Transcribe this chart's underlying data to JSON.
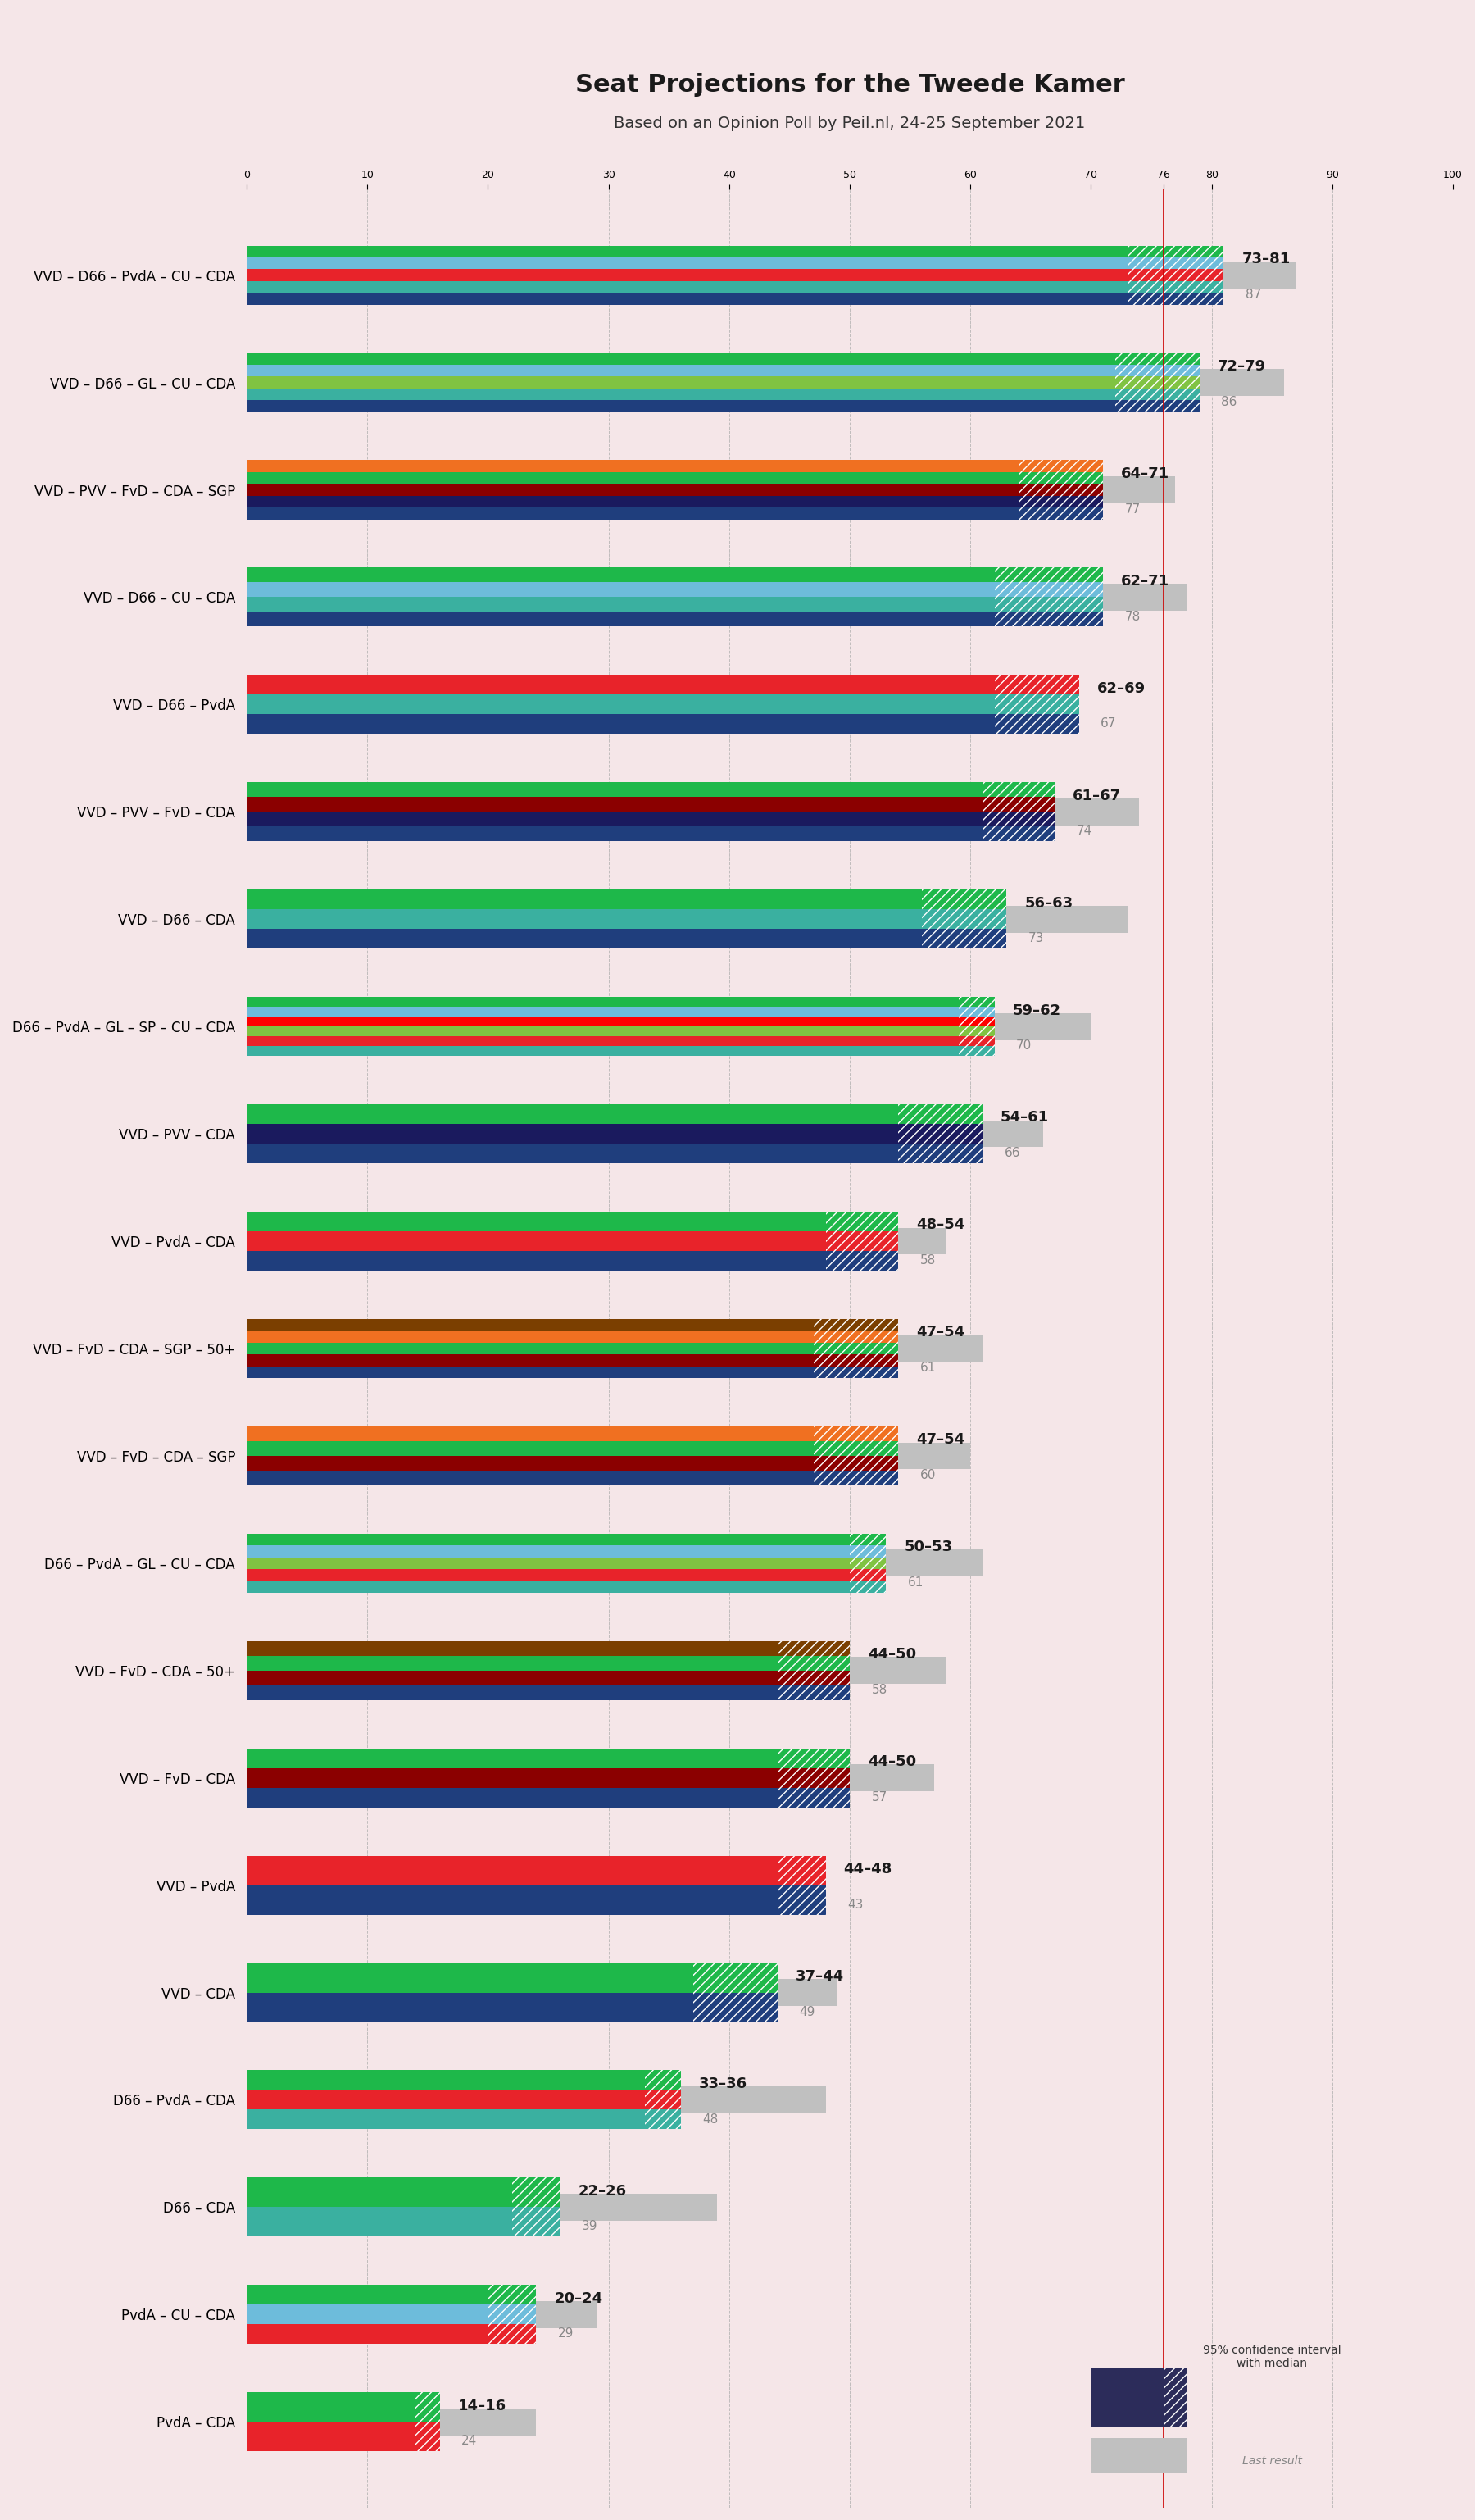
{
  "title": "Seat Projections for the Tweede Kamer",
  "subtitle": "Based on an Opinion Poll by Peil.nl, 24-25 September 2021",
  "background_color": "#f5e6e8",
  "coalitions": [
    {
      "name": "VVD – D66 – PvdA – CU – CDA",
      "low": 73,
      "high": 81,
      "last": 87,
      "parties": [
        "VVD",
        "D66",
        "PvdA",
        "CU",
        "CDA"
      ],
      "colors": [
        "#1f3e7d",
        "#3ab0a0",
        "#00a650",
        "#b22222",
        "#e8232a",
        "#1eb84a"
      ]
    },
    {
      "name": "VVD – D66 – GL – CU – CDA",
      "low": 72,
      "high": 79,
      "last": 86,
      "parties": [
        "VVD",
        "D66",
        "GL",
        "CU",
        "CDA"
      ],
      "colors": [
        "#1f3e7d",
        "#3ab0a0",
        "#80c342",
        "#b5d334",
        "#6dbcdb",
        "#1eb84a"
      ]
    },
    {
      "name": "VVD – PVV – FvD – CDA – SGP",
      "low": 64,
      "high": 71,
      "last": 77,
      "parties": [
        "VVD",
        "PVV",
        "FvD",
        "CDA",
        "SGP"
      ],
      "colors": [
        "#1f3e7d",
        "#1a1a5e",
        "#8b0000",
        "#2e8b57",
        "#1eb84a",
        "#f07021"
      ]
    },
    {
      "name": "VVD – D66 – CU – CDA",
      "low": 62,
      "high": 71,
      "last": 78,
      "parties": [
        "VVD",
        "D66",
        "CU",
        "CDA"
      ],
      "colors": [
        "#1f3e7d",
        "#3ab0a0",
        "#6dbcdb",
        "#2e8b57",
        "#1eb84a"
      ]
    },
    {
      "name": "VVD – D66 – PvdA",
      "low": 62,
      "high": 69,
      "last": 67,
      "parties": [
        "VVD",
        "D66",
        "PvdA"
      ],
      "colors": [
        "#1f3e7d",
        "#3ab0a0",
        "#00a650",
        "#b22222",
        "#e8232a"
      ]
    },
    {
      "name": "VVD – PVV – FvD – CDA",
      "low": 61,
      "high": 67,
      "last": 74,
      "parties": [
        "VVD",
        "PVV",
        "FvD",
        "CDA"
      ],
      "colors": [
        "#1f3e7d",
        "#1a1a5e",
        "#8b0000",
        "#2e8b57",
        "#1eb84a"
      ]
    },
    {
      "name": "VVD – D66 – CDA",
      "low": 56,
      "high": 63,
      "last": 73,
      "parties": [
        "VVD",
        "D66",
        "CDA"
      ],
      "colors": [
        "#1f3e7d",
        "#3ab0a0",
        "#2e8b57",
        "#1eb84a"
      ]
    },
    {
      "name": "D66 – PvdA – GL – SP – CU – CDA",
      "low": 59,
      "high": 62,
      "last": 70,
      "parties": [
        "D66",
        "PvdA",
        "GL",
        "SP",
        "CU",
        "CDA"
      ],
      "colors": [
        "#3ab0a0",
        "#00a650",
        "#80c342",
        "#e8232a",
        "#6dbcdb",
        "#1eb84a"
      ]
    },
    {
      "name": "VVD – PVV – CDA",
      "low": 54,
      "high": 61,
      "last": 66,
      "parties": [
        "VVD",
        "PVV",
        "CDA"
      ],
      "colors": [
        "#1f3e7d",
        "#1a1a5e",
        "#2e8b57",
        "#1eb84a"
      ]
    },
    {
      "name": "VVD – PvdA – CDA",
      "low": 48,
      "high": 54,
      "last": 58,
      "parties": [
        "VVD",
        "PvdA",
        "CDA"
      ],
      "colors": [
        "#1f3e7d",
        "#00a650",
        "#e8232a",
        "#2e8b57"
      ]
    },
    {
      "name": "VVD – FvD – CDA – SGP – 50+",
      "low": 47,
      "high": 54,
      "last": 61,
      "parties": [
        "VVD",
        "FvD",
        "CDA",
        "SGP",
        "50+"
      ],
      "colors": [
        "#1f3e7d",
        "#8b0000",
        "#2e8b57",
        "#1eb84a",
        "#7b3f00",
        "#f07021"
      ]
    },
    {
      "name": "VVD – FvD – CDA – SGP",
      "low": 47,
      "high": 54,
      "last": 60,
      "parties": [
        "VVD",
        "FvD",
        "CDA",
        "SGP"
      ],
      "colors": [
        "#1f3e7d",
        "#8b0000",
        "#2e8b57",
        "#1eb84a",
        "#f07021"
      ]
    },
    {
      "name": "D66 – PvdA – GL – CU – CDA",
      "low": 50,
      "high": 53,
      "last": 61,
      "parties": [
        "D66",
        "PvdA",
        "GL",
        "CU",
        "CDA"
      ],
      "colors": [
        "#3ab0a0",
        "#00a650",
        "#80c342",
        "#6dbcdb",
        "#1eb84a"
      ]
    },
    {
      "name": "VVD – FvD – CDA – 50+",
      "low": 44,
      "high": 50,
      "last": 58,
      "parties": [
        "VVD",
        "FvD",
        "CDA",
        "50+"
      ],
      "colors": [
        "#1f3e7d",
        "#8b0000",
        "#2e8b57",
        "#7b3f00",
        "#f07021"
      ]
    },
    {
      "name": "VVD – FvD – CDA",
      "low": 44,
      "high": 50,
      "last": 57,
      "parties": [
        "VVD",
        "FvD",
        "CDA"
      ],
      "colors": [
        "#1f3e7d",
        "#8b0000",
        "#2e8b57",
        "#1eb84a"
      ]
    },
    {
      "name": "VVD – PvdA",
      "low": 44,
      "high": 48,
      "last": 43,
      "parties": [
        "VVD",
        "PvdA"
      ],
      "colors": [
        "#1f3e7d",
        "#e8232a"
      ]
    },
    {
      "name": "VVD – CDA",
      "low": 37,
      "high": 44,
      "last": 49,
      "parties": [
        "VVD",
        "CDA"
      ],
      "colors": [
        "#1f3e7d",
        "#2e8b57",
        "#1eb84a"
      ]
    },
    {
      "name": "D66 – PvdA – CDA",
      "low": 33,
      "high": 36,
      "last": 48,
      "parties": [
        "D66",
        "PvdA",
        "CDA"
      ],
      "colors": [
        "#3ab0a0",
        "#e8232a",
        "#2e8b57"
      ]
    },
    {
      "name": "D66 – CDA",
      "low": 22,
      "high": 26,
      "last": 39,
      "parties": [
        "D66",
        "CDA"
      ],
      "colors": [
        "#3ab0a0",
        "#2e8b57"
      ]
    },
    {
      "name": "PvdA – CU – CDA",
      "low": 20,
      "high": 24,
      "last": 29,
      "parties": [
        "PvdA",
        "CU",
        "CDA"
      ],
      "colors": [
        "#e8232a",
        "#6dbcdb",
        "#2e8b57"
      ]
    },
    {
      "name": "PvdA – CDA",
      "low": 14,
      "high": 16,
      "last": 24,
      "parties": [
        "PvdA",
        "CDA"
      ],
      "colors": [
        "#e8232a",
        "#2e8b57"
      ]
    }
  ],
  "party_colors": {
    "VVD": "#1f3e7d",
    "D66": "#3ab0a0",
    "PvdA": "#e8232a",
    "CU": "#6dbcdb",
    "CDA": "#1eb84a",
    "GL": "#80c342",
    "PVV": "#1a1a5e",
    "FvD": "#8b0000",
    "SGP": "#f07021",
    "SP": "#ff0000",
    "50+": "#7b3f00"
  },
  "xlim": [
    0,
    100
  ],
  "majority_line": 76,
  "grid_ticks": [
    0,
    10,
    20,
    30,
    40,
    50,
    60,
    70,
    76,
    80,
    90,
    100
  ],
  "bar_height": 0.55,
  "gray_bar_height": 0.25
}
